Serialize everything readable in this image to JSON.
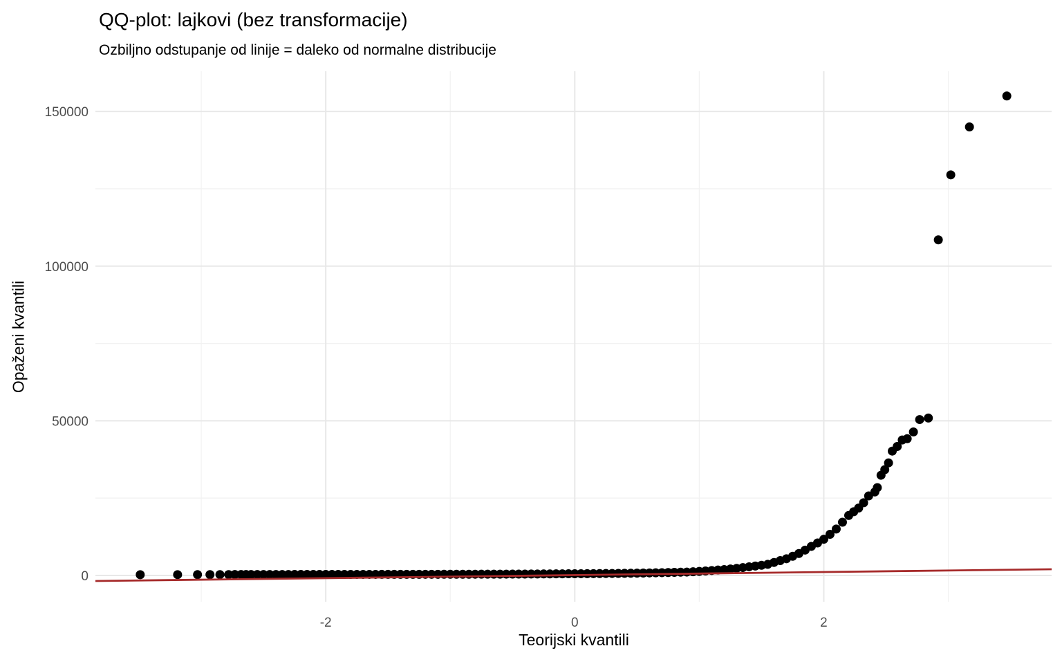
{
  "chart_data": {
    "type": "scatter",
    "title": "QQ-plot: lajkovi (bez transformacije)",
    "subtitle": "Ozbiljno odstupanje od linije = daleko od normalne distribucije",
    "xlabel": "Teorijski kvantili",
    "ylabel": "Opaženi kvantili",
    "xlim": [
      -3.85,
      3.83
    ],
    "ylim": [
      -8500,
      163000
    ],
    "grid": true,
    "legend_position": "none",
    "x_tick_values": [
      -2,
      0,
      2
    ],
    "x_tick_labels": [
      "-2",
      "0",
      "2"
    ],
    "y_tick_values": [
      0,
      50000,
      100000,
      150000
    ],
    "y_tick_labels": [
      "0",
      "50000",
      "100000",
      "150000"
    ],
    "x_minor_gridlines": [
      -3,
      -1,
      1,
      3
    ],
    "y_minor_gridlines": [
      25000,
      75000,
      125000
    ],
    "colors": {
      "point": "#000000",
      "reference_line": "#A62A2A",
      "grid_major": "#E8E8E8",
      "grid_minor": "#F2F2F2",
      "tick_text": "#4d4d4d"
    },
    "reference_line": {
      "intercept": 115,
      "slope": 496
    },
    "points": [
      [
        -3.49,
        250
      ],
      [
        -3.19,
        260
      ],
      [
        -3.03,
        270
      ],
      [
        -2.93,
        280
      ],
      [
        -2.85,
        285
      ],
      [
        -2.78,
        290
      ],
      [
        -2.73,
        295
      ],
      [
        -2.68,
        300
      ],
      [
        -2.64,
        302
      ],
      [
        -2.6,
        305
      ],
      [
        -2.55,
        307
      ],
      [
        -2.5,
        310
      ],
      [
        -2.45,
        312
      ],
      [
        -2.4,
        314
      ],
      [
        -2.35,
        316
      ],
      [
        -2.3,
        318
      ],
      [
        -2.25,
        320
      ],
      [
        -2.2,
        322
      ],
      [
        -2.15,
        324
      ],
      [
        -2.1,
        326
      ],
      [
        -2.05,
        328
      ],
      [
        -2.0,
        330
      ],
      [
        -1.95,
        332
      ],
      [
        -1.9,
        334
      ],
      [
        -1.85,
        336
      ],
      [
        -1.8,
        338
      ],
      [
        -1.75,
        340
      ],
      [
        -1.7,
        342
      ],
      [
        -1.65,
        344
      ],
      [
        -1.6,
        346
      ],
      [
        -1.55,
        348
      ],
      [
        -1.5,
        350
      ],
      [
        -1.45,
        353
      ],
      [
        -1.4,
        356
      ],
      [
        -1.35,
        359
      ],
      [
        -1.3,
        362
      ],
      [
        -1.25,
        365
      ],
      [
        -1.2,
        368
      ],
      [
        -1.15,
        371
      ],
      [
        -1.1,
        374
      ],
      [
        -1.05,
        377
      ],
      [
        -1.0,
        380
      ],
      [
        -0.95,
        384
      ],
      [
        -0.9,
        388
      ],
      [
        -0.85,
        393
      ],
      [
        -0.8,
        398
      ],
      [
        -0.75,
        403
      ],
      [
        -0.7,
        408
      ],
      [
        -0.65,
        414
      ],
      [
        -0.6,
        420
      ],
      [
        -0.55,
        425
      ],
      [
        -0.5,
        430
      ],
      [
        -0.45,
        440
      ],
      [
        -0.4,
        450
      ],
      [
        -0.35,
        462
      ],
      [
        -0.3,
        474
      ],
      [
        -0.25,
        488
      ],
      [
        -0.2,
        502
      ],
      [
        -0.15,
        518
      ],
      [
        -0.1,
        534
      ],
      [
        -0.05,
        542
      ],
      [
        0.0,
        550
      ],
      [
        0.05,
        565
      ],
      [
        0.1,
        580
      ],
      [
        0.15,
        597
      ],
      [
        0.2,
        615
      ],
      [
        0.25,
        632
      ],
      [
        0.3,
        650
      ],
      [
        0.35,
        672
      ],
      [
        0.4,
        695
      ],
      [
        0.45,
        720
      ],
      [
        0.5,
        750
      ],
      [
        0.55,
        785
      ],
      [
        0.6,
        820
      ],
      [
        0.65,
        860
      ],
      [
        0.7,
        905
      ],
      [
        0.75,
        950
      ],
      [
        0.8,
        1000
      ],
      [
        0.85,
        1050
      ],
      [
        0.9,
        1100
      ],
      [
        0.95,
        1200
      ],
      [
        1.0,
        1300
      ],
      [
        1.05,
        1450
      ],
      [
        1.1,
        1600
      ],
      [
        1.15,
        1750
      ],
      [
        1.2,
        1900
      ],
      [
        1.25,
        2100
      ],
      [
        1.3,
        2300
      ],
      [
        1.35,
        2550
      ],
      [
        1.4,
        2800
      ],
      [
        1.45,
        3050
      ],
      [
        1.5,
        3300
      ],
      [
        1.55,
        3600
      ],
      [
        1.6,
        4200
      ],
      [
        1.65,
        4800
      ],
      [
        1.7,
        5400
      ],
      [
        1.75,
        6200
      ],
      [
        1.8,
        7100
      ],
      [
        1.85,
        8200
      ],
      [
        1.9,
        9400
      ],
      [
        1.95,
        10500
      ],
      [
        2.0,
        11700
      ],
      [
        2.05,
        13300
      ],
      [
        2.1,
        15000
      ],
      [
        2.15,
        17200
      ],
      [
        2.2,
        19400
      ],
      [
        2.24,
        20600
      ],
      [
        2.28,
        21800
      ],
      [
        2.32,
        23500
      ],
      [
        2.36,
        25700
      ],
      [
        2.41,
        27000
      ],
      [
        2.43,
        28400
      ],
      [
        2.46,
        32400
      ],
      [
        2.49,
        34200
      ],
      [
        2.52,
        36400
      ],
      [
        2.55,
        40200
      ],
      [
        2.59,
        41700
      ],
      [
        2.63,
        43800
      ],
      [
        2.67,
        44200
      ],
      [
        2.72,
        46400
      ],
      [
        2.77,
        50400
      ],
      [
        2.84,
        50900
      ],
      [
        2.92,
        108500
      ],
      [
        3.02,
        129500
      ],
      [
        3.17,
        145000
      ],
      [
        3.47,
        155000
      ]
    ]
  }
}
